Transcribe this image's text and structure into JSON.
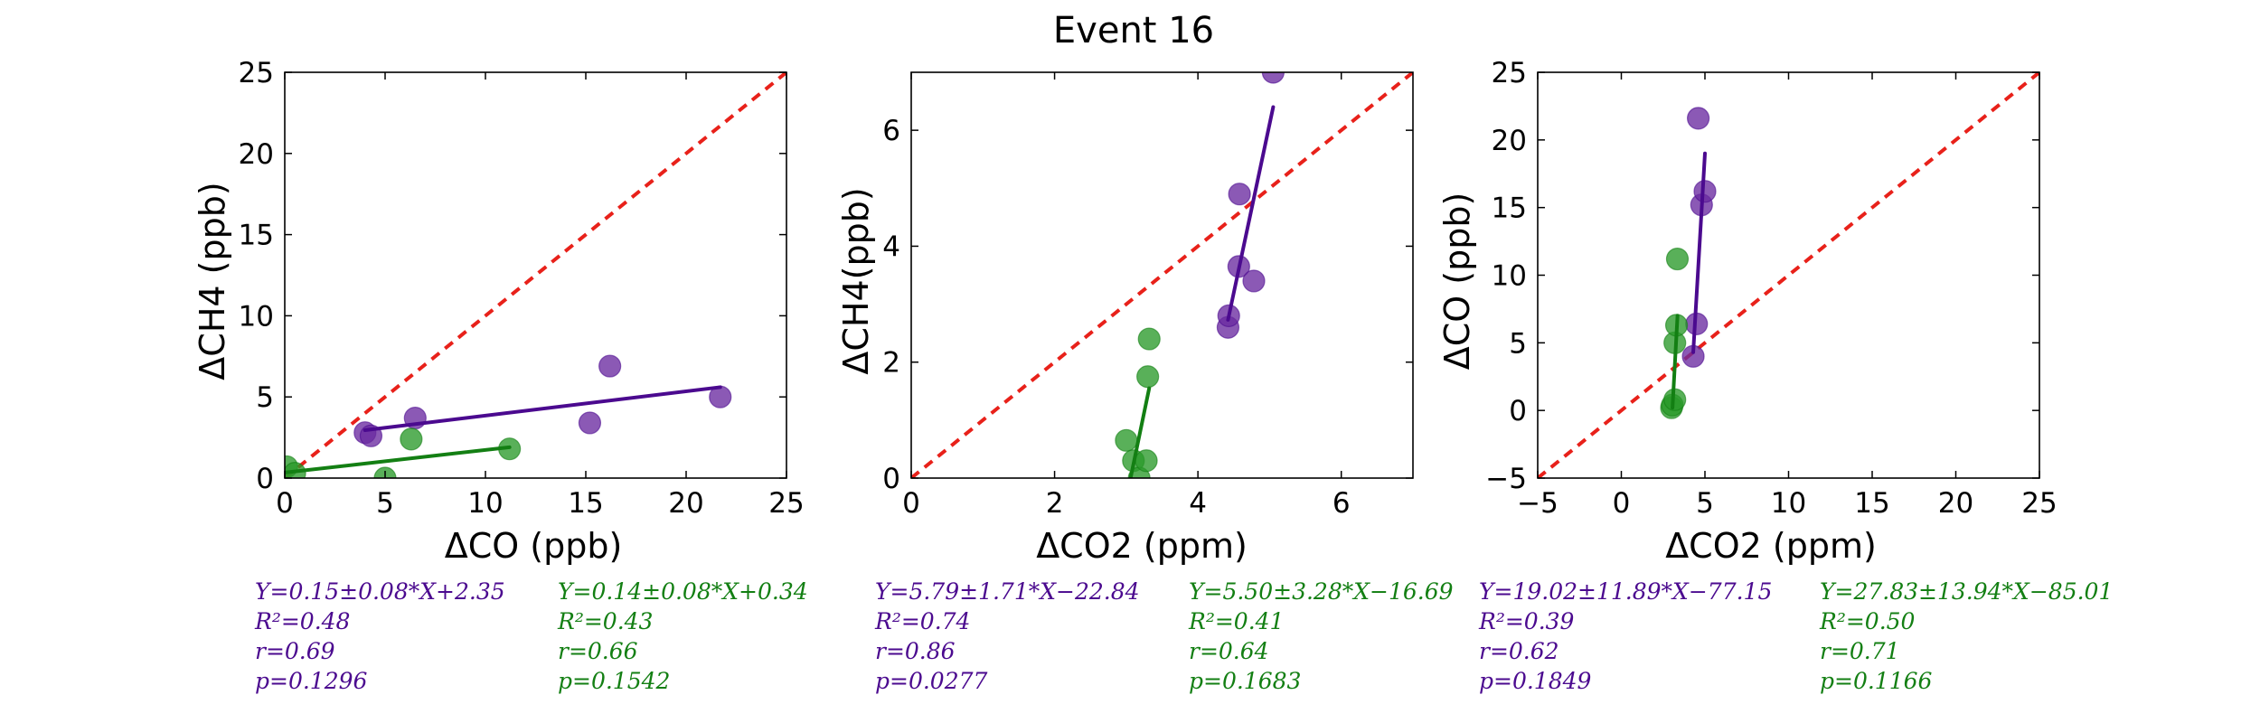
{
  "figure": {
    "title": "Event 16"
  },
  "colors": {
    "purple": "#4b0a8f",
    "purple_fill": "#6a2aa0",
    "green": "#137f13",
    "green_fill": "#2a9a2a",
    "identity": "#e8211a"
  },
  "chart_data": [
    {
      "type": "scatter",
      "title": "",
      "xlabel": "ΔCO (ppb)",
      "ylabel": "ΔCH4 (ppb)",
      "xlim": [
        0,
        25
      ],
      "ylim": [
        0,
        25
      ],
      "xticks": [
        0,
        5,
        10,
        15,
        20,
        25
      ],
      "yticks": [
        0,
        5,
        10,
        15,
        20,
        25
      ],
      "identity_line": true,
      "series": [
        {
          "color_key": "purple",
          "points": [
            [
              4.0,
              2.8
            ],
            [
              4.3,
              2.6
            ],
            [
              6.5,
              3.7
            ],
            [
              15.2,
              3.4
            ],
            [
              16.2,
              6.9
            ],
            [
              21.7,
              5.0
            ]
          ],
          "fit": {
            "x": [
              4.0,
              21.7
            ],
            "y": [
              2.95,
              5.6
            ]
          },
          "stats": [
            "Y=0.15±0.08*X+2.35",
            "R²=0.48",
            "r=0.69",
            "p=0.1296"
          ]
        },
        {
          "color_key": "green",
          "points": [
            [
              0.1,
              0.7
            ],
            [
              0.5,
              0.3
            ],
            [
              5.0,
              0.0
            ],
            [
              6.3,
              2.4
            ],
            [
              11.2,
              1.8
            ]
          ],
          "fit": {
            "x": [
              0.0,
              11.2
            ],
            "y": [
              0.34,
              1.9
            ]
          },
          "stats": [
            "Y=0.14±0.08*X+0.34",
            "R²=0.43",
            "r=0.66",
            "p=0.1542"
          ]
        }
      ]
    },
    {
      "type": "scatter",
      "title": "",
      "xlabel": "ΔCO2 (ppm)",
      "ylabel": "ΔCH4(ppb)",
      "xlim": [
        0,
        7
      ],
      "ylim": [
        0,
        7
      ],
      "xticks": [
        0,
        2,
        4,
        6
      ],
      "yticks": [
        0,
        2,
        4,
        6
      ],
      "identity_line": true,
      "series": [
        {
          "color_key": "purple",
          "points": [
            [
              4.42,
              2.6
            ],
            [
              4.43,
              2.8
            ],
            [
              4.57,
              3.65
            ],
            [
              4.58,
              4.9
            ],
            [
              4.78,
              3.4
            ],
            [
              5.05,
              7.0
            ]
          ],
          "fit": {
            "x": [
              4.42,
              5.05
            ],
            "y": [
              2.73,
              6.4
            ]
          },
          "stats": [
            "Y=5.79±1.71*X−22.84",
            "R²=0.74",
            "r=0.86",
            "p=0.0277"
          ]
        },
        {
          "color_key": "green",
          "points": [
            [
              3.0,
              0.65
            ],
            [
              3.1,
              0.3
            ],
            [
              3.18,
              0.0
            ],
            [
              3.28,
              0.3
            ],
            [
              3.3,
              1.75
            ],
            [
              3.32,
              2.4
            ]
          ],
          "fit": {
            "x": [
              3.06,
              3.32
            ],
            "y": [
              0.0,
              1.55
            ]
          },
          "stats": [
            "Y=5.50±3.28*X−16.69",
            "R²=0.41",
            "r=0.64",
            "p=0.1683"
          ]
        }
      ]
    },
    {
      "type": "scatter",
      "title": "",
      "xlabel": "ΔCO2 (ppm)",
      "ylabel": "ΔCO (ppb)",
      "xlim": [
        -5,
        25
      ],
      "ylim": [
        -5,
        25
      ],
      "xticks": [
        -5,
        0,
        5,
        10,
        15,
        20,
        25
      ],
      "yticks": [
        -5,
        0,
        5,
        10,
        15,
        20,
        25
      ],
      "identity_line": true,
      "series": [
        {
          "color_key": "purple",
          "points": [
            [
              4.3,
              4.0
            ],
            [
              4.5,
              6.4
            ],
            [
              4.6,
              21.6
            ],
            [
              4.8,
              15.2
            ],
            [
              5.0,
              16.2
            ]
          ],
          "fit": {
            "x": [
              4.3,
              5.0
            ],
            "y": [
              4.3,
              19.0
            ]
          },
          "stats": [
            "Y=19.02±11.89*X−77.15",
            "R²=0.39",
            "r=0.62",
            "p=0.1849"
          ]
        },
        {
          "color_key": "green",
          "points": [
            [
              3.0,
              0.2
            ],
            [
              3.05,
              0.4
            ],
            [
              3.2,
              0.8
            ],
            [
              3.2,
              5.0
            ],
            [
              3.3,
              6.3
            ],
            [
              3.35,
              11.2
            ]
          ],
          "fit": {
            "x": [
              3.06,
              3.36
            ],
            "y": [
              0.2,
              7.0
            ]
          },
          "stats": [
            "Y=27.83±13.94*X−85.01",
            "R²=0.50",
            "r=0.71",
            "p=0.1166"
          ]
        }
      ]
    }
  ]
}
